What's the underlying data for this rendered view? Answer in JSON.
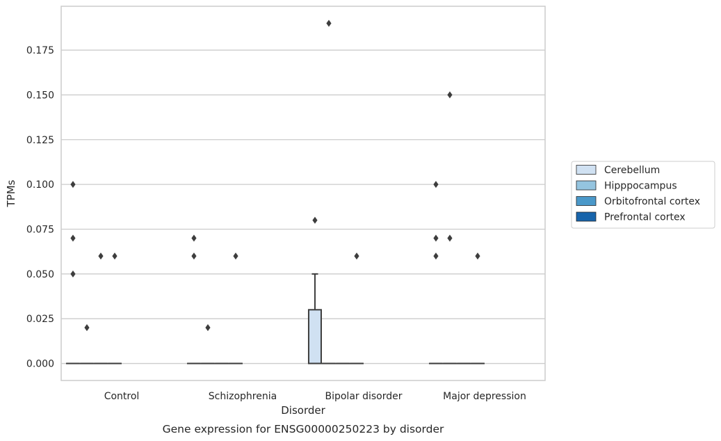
{
  "caption": "Gene expression for ENSG00000250223 by disorder",
  "chart_data": {
    "type": "box",
    "xlabel": "Disorder",
    "ylabel": "TPMs",
    "categories": [
      "Control",
      "Schizophrenia",
      "Bipolar disorder",
      "Major depression"
    ],
    "yticks": [
      "0.000",
      "0.025",
      "0.050",
      "0.075",
      "0.100",
      "0.125",
      "0.150",
      "0.175"
    ],
    "ylim": [
      -0.0095,
      0.1995
    ],
    "grid": "y",
    "legend": {
      "placement": "right",
      "entries": [
        "Cerebellum",
        "Hipppocampus",
        "Orbitofrontal cortex",
        "Prefrontal cortex"
      ]
    },
    "series_colors": [
      "#d0e1f2",
      "#94c4df",
      "#4a98c9",
      "#1764ab"
    ],
    "series": [
      {
        "name": "Cerebellum",
        "boxes": [
          {
            "category": "Control",
            "q1": 0,
            "median": 0,
            "q3": 0,
            "whisker_low": 0,
            "whisker_high": 0,
            "outliers": [
              0.1,
              0.07,
              0.05
            ]
          },
          {
            "category": "Schizophrenia",
            "q1": 0,
            "median": 0,
            "q3": 0,
            "whisker_low": 0,
            "whisker_high": 0,
            "outliers": [
              0.07,
              0.06
            ]
          },
          {
            "category": "Bipolar disorder",
            "q1": 0,
            "median": 0,
            "q3": 0.03,
            "whisker_low": 0,
            "whisker_high": 0.05,
            "outliers": [
              0.08
            ]
          },
          {
            "category": "Major depression",
            "q1": 0,
            "median": 0,
            "q3": 0,
            "whisker_low": 0,
            "whisker_high": 0,
            "outliers": [
              0.1,
              0.07,
              0.06
            ]
          }
        ]
      },
      {
        "name": "Hipppocampus",
        "boxes": [
          {
            "category": "Control",
            "q1": 0,
            "median": 0,
            "q3": 0,
            "whisker_low": 0,
            "whisker_high": 0,
            "outliers": [
              0.02
            ]
          },
          {
            "category": "Schizophrenia",
            "q1": 0,
            "median": 0,
            "q3": 0,
            "whisker_low": 0,
            "whisker_high": 0,
            "outliers": [
              0.02
            ]
          },
          {
            "category": "Bipolar disorder",
            "q1": 0,
            "median": 0,
            "q3": 0,
            "whisker_low": 0,
            "whisker_high": 0,
            "outliers": [
              0.19
            ]
          },
          {
            "category": "Major depression",
            "q1": 0,
            "median": 0,
            "q3": 0,
            "whisker_low": 0,
            "whisker_high": 0,
            "outliers": [
              0.15,
              0.07
            ]
          }
        ]
      },
      {
        "name": "Orbitofrontal cortex",
        "boxes": [
          {
            "category": "Control",
            "q1": 0,
            "median": 0,
            "q3": 0,
            "whisker_low": 0,
            "whisker_high": 0,
            "outliers": [
              0.06
            ]
          },
          {
            "category": "Schizophrenia",
            "q1": 0,
            "median": 0,
            "q3": 0,
            "whisker_low": 0,
            "whisker_high": 0,
            "outliers": []
          },
          {
            "category": "Bipolar disorder",
            "q1": 0,
            "median": 0,
            "q3": 0,
            "whisker_low": 0,
            "whisker_high": 0,
            "outliers": []
          },
          {
            "category": "Major depression",
            "q1": 0,
            "median": 0,
            "q3": 0,
            "whisker_low": 0,
            "whisker_high": 0,
            "outliers": []
          }
        ]
      },
      {
        "name": "Prefrontal cortex",
        "boxes": [
          {
            "category": "Control",
            "q1": 0,
            "median": 0,
            "q3": 0,
            "whisker_low": 0,
            "whisker_high": 0,
            "outliers": [
              0.06
            ]
          },
          {
            "category": "Schizophrenia",
            "q1": 0,
            "median": 0,
            "q3": 0,
            "whisker_low": 0,
            "whisker_high": 0,
            "outliers": [
              0.06
            ]
          },
          {
            "category": "Bipolar disorder",
            "q1": 0,
            "median": 0,
            "q3": 0,
            "whisker_low": 0,
            "whisker_high": 0,
            "outliers": [
              0.06
            ]
          },
          {
            "category": "Major depression",
            "q1": 0,
            "median": 0,
            "q3": 0,
            "whisker_low": 0,
            "whisker_high": 0,
            "outliers": [
              0.06
            ]
          }
        ]
      }
    ]
  }
}
